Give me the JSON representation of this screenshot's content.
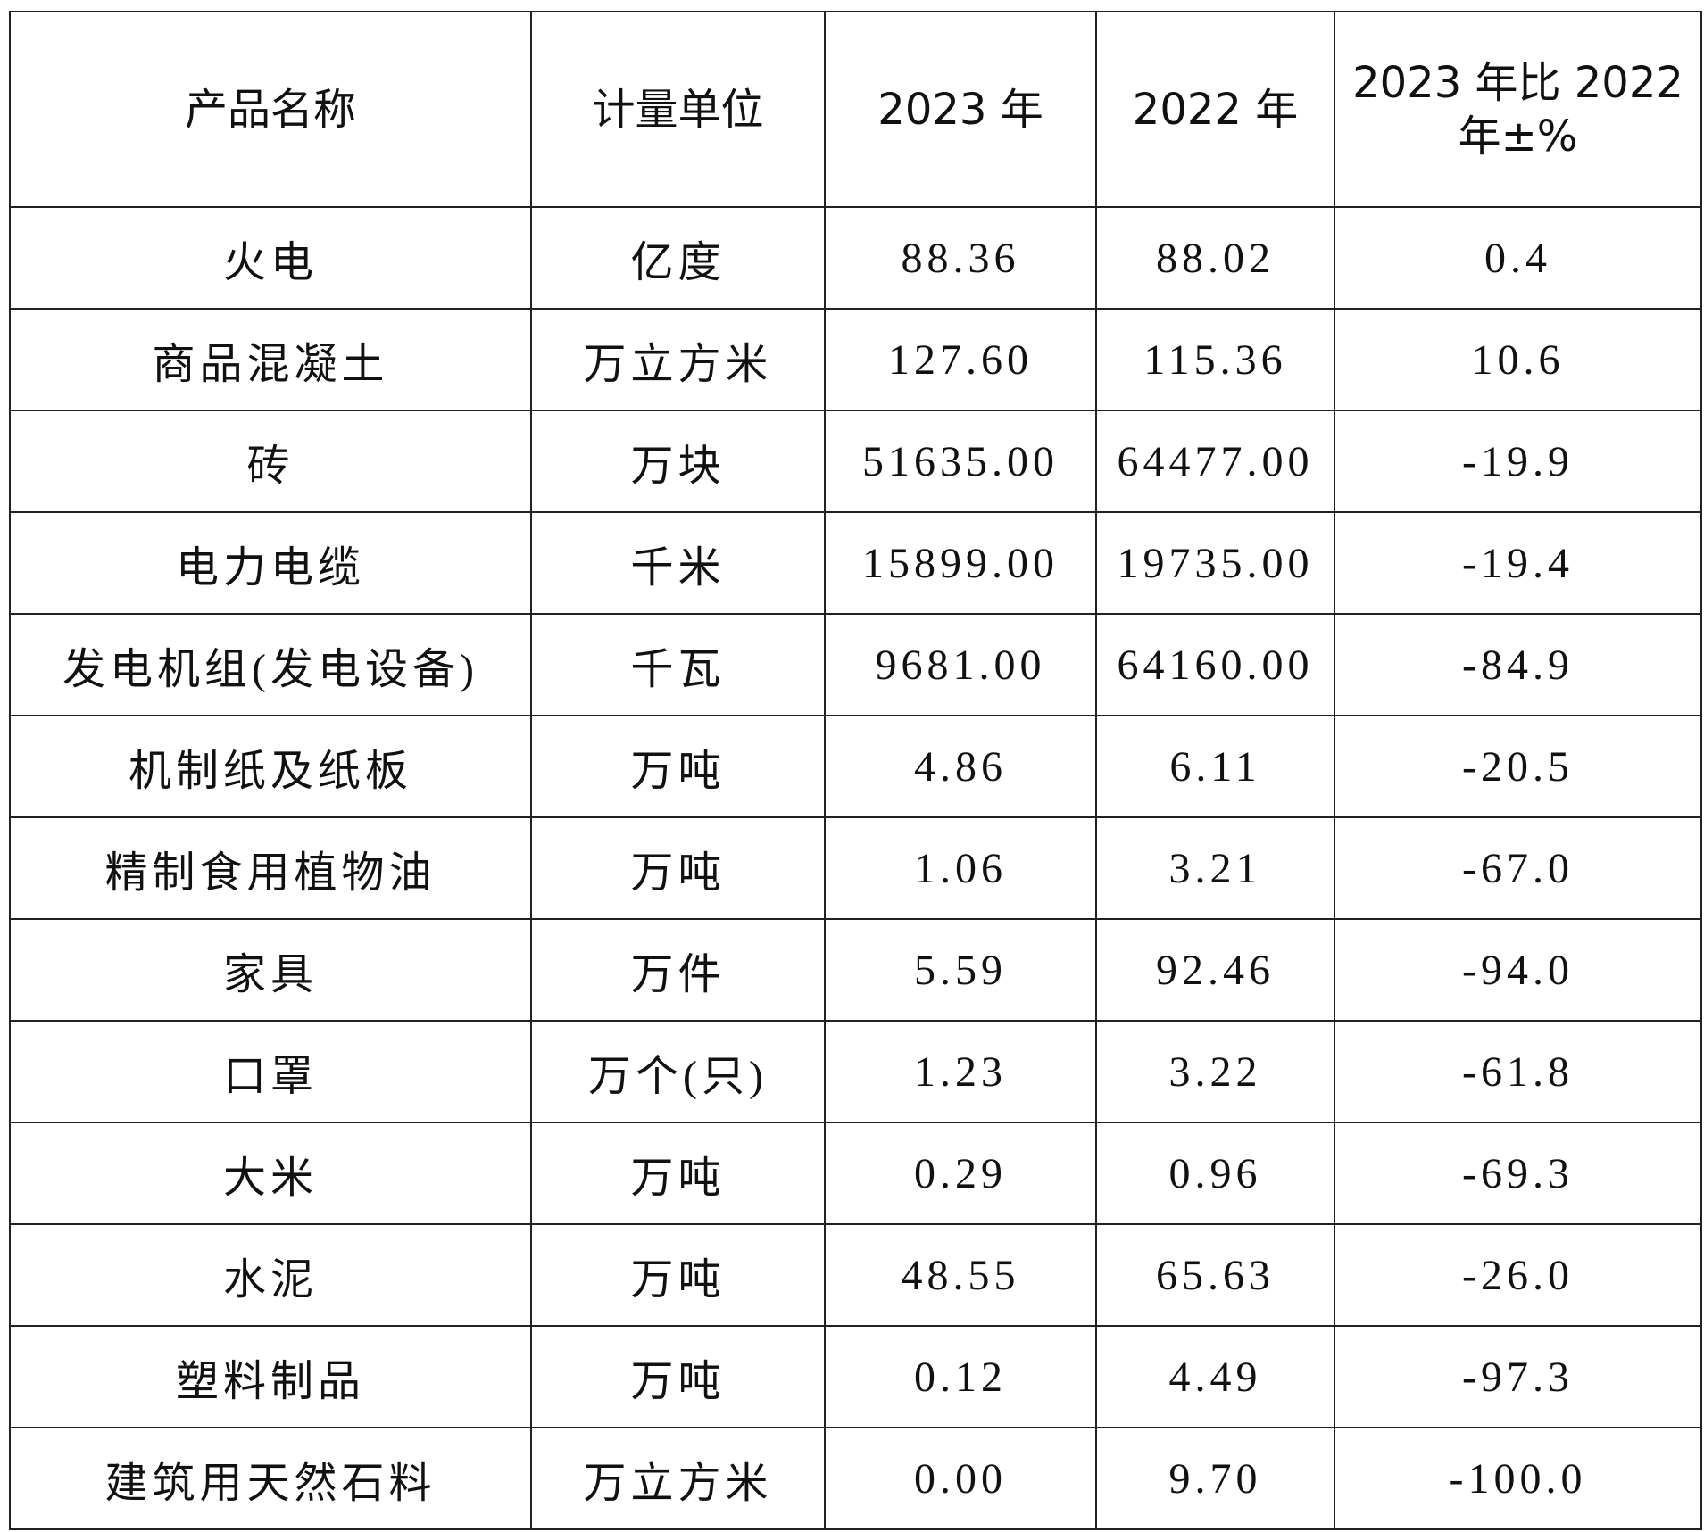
{
  "table": {
    "header": [
      "产品名称",
      "计量单位",
      "2023 年",
      "2022 年",
      "2023 年比 2022 年±%"
    ],
    "rows": [
      [
        "火电",
        "亿度",
        "88.36",
        "88.02",
        "0.4"
      ],
      [
        "商品混凝土",
        "万立方米",
        "127.60",
        "115.36",
        "10.6"
      ],
      [
        "砖",
        "万块",
        "51635.00",
        "64477.00",
        "-19.9"
      ],
      [
        "电力电缆",
        "千米",
        "15899.00",
        "19735.00",
        "-19.4"
      ],
      [
        "发电机组(发电设备)",
        "千瓦",
        "9681.00",
        "64160.00",
        "-84.9"
      ],
      [
        "机制纸及纸板",
        "万吨",
        "4.86",
        "6.11",
        "-20.5"
      ],
      [
        "精制食用植物油",
        "万吨",
        "1.06",
        "3.21",
        "-67.0"
      ],
      [
        "家具",
        "万件",
        "5.59",
        "92.46",
        "-94.0"
      ],
      [
        "口罩",
        "万个(只)",
        "1.23",
        "3.22",
        "-61.8"
      ],
      [
        "大米",
        "万吨",
        "0.29",
        "0.96",
        "-69.3"
      ],
      [
        "水泥",
        "万吨",
        "48.55",
        "65.63",
        "-26.0"
      ],
      [
        "塑料制品",
        "万吨",
        "0.12",
        "4.49",
        "-97.3"
      ],
      [
        "建筑用天然石料",
        "万立方米",
        "0.00",
        "9.70",
        "-100.0"
      ]
    ]
  }
}
